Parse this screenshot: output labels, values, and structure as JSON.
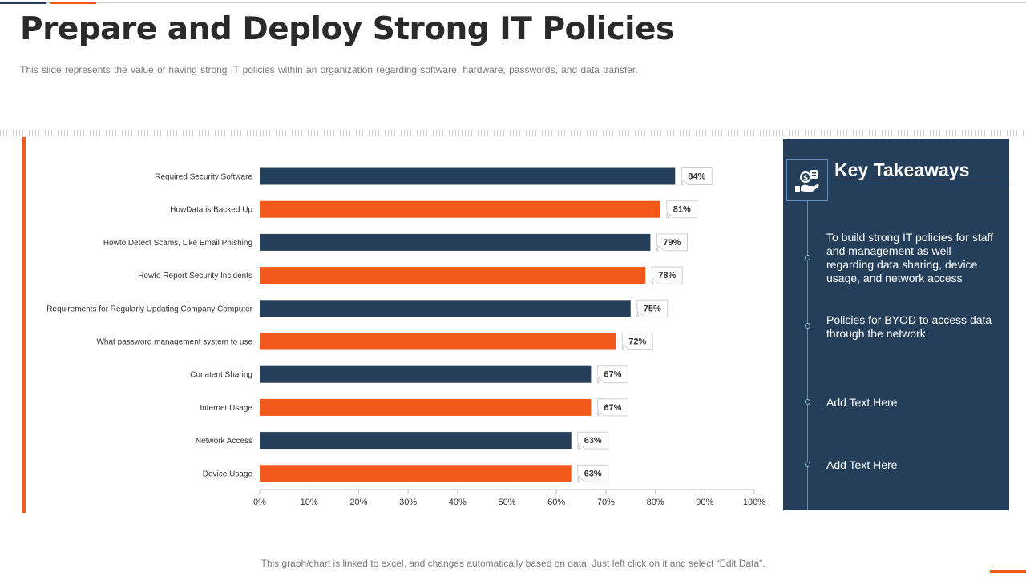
{
  "slide": {
    "title": "Prepare and Deploy Strong IT Policies",
    "subtitle": "This slide represents the value of having  strong IT  policies within an organization regarding software,  hardware,  passwords,  and data transfer.",
    "footer_note": "This graph/chart is linked to excel,  and changes automatically based on data. Just left click on it and select “Edit Data”."
  },
  "colors": {
    "navy": "#253f5a",
    "orange": "#f2591b"
  },
  "chart_data": {
    "type": "bar",
    "orientation": "horizontal",
    "categories": [
      "Required Security Software",
      "HowData is Backed Up",
      "Howto Detect Scams, Like Email Phishing",
      "Howto Report Security Incidents",
      "Requirements for Regularly Updating Company Computer",
      "What password management system to use",
      "Conatent Sharing",
      "Internet Usage",
      "Network Access",
      "Device Usage"
    ],
    "values": [
      84,
      81,
      79,
      78,
      75,
      72,
      67,
      67,
      63,
      63
    ],
    "value_labels": [
      "84%",
      "81%",
      "79%",
      "78%",
      "75%",
      "72%",
      "67%",
      "67%",
      "63%",
      "63%"
    ],
    "bar_colors": [
      "#253f5a",
      "#f2591b",
      "#253f5a",
      "#f2591b",
      "#253f5a",
      "#f2591b",
      "#253f5a",
      "#f2591b",
      "#253f5a",
      "#f2591b"
    ],
    "xlim": [
      0,
      100
    ],
    "xticks": [
      "0%",
      "10%",
      "20%",
      "30%",
      "40%",
      "50%",
      "60%",
      "70%",
      "80%",
      "90%",
      "100%"
    ],
    "grid": false
  },
  "takeaways": {
    "title": "Key Takeaways",
    "icon": "hand-money-icon",
    "items": [
      "To build strong IT policies for staff and management as well regarding data sharing, device usage, and network access",
      "Policies for BYOD to access data through the network",
      "Add Text Here",
      "Add Text Here"
    ]
  }
}
